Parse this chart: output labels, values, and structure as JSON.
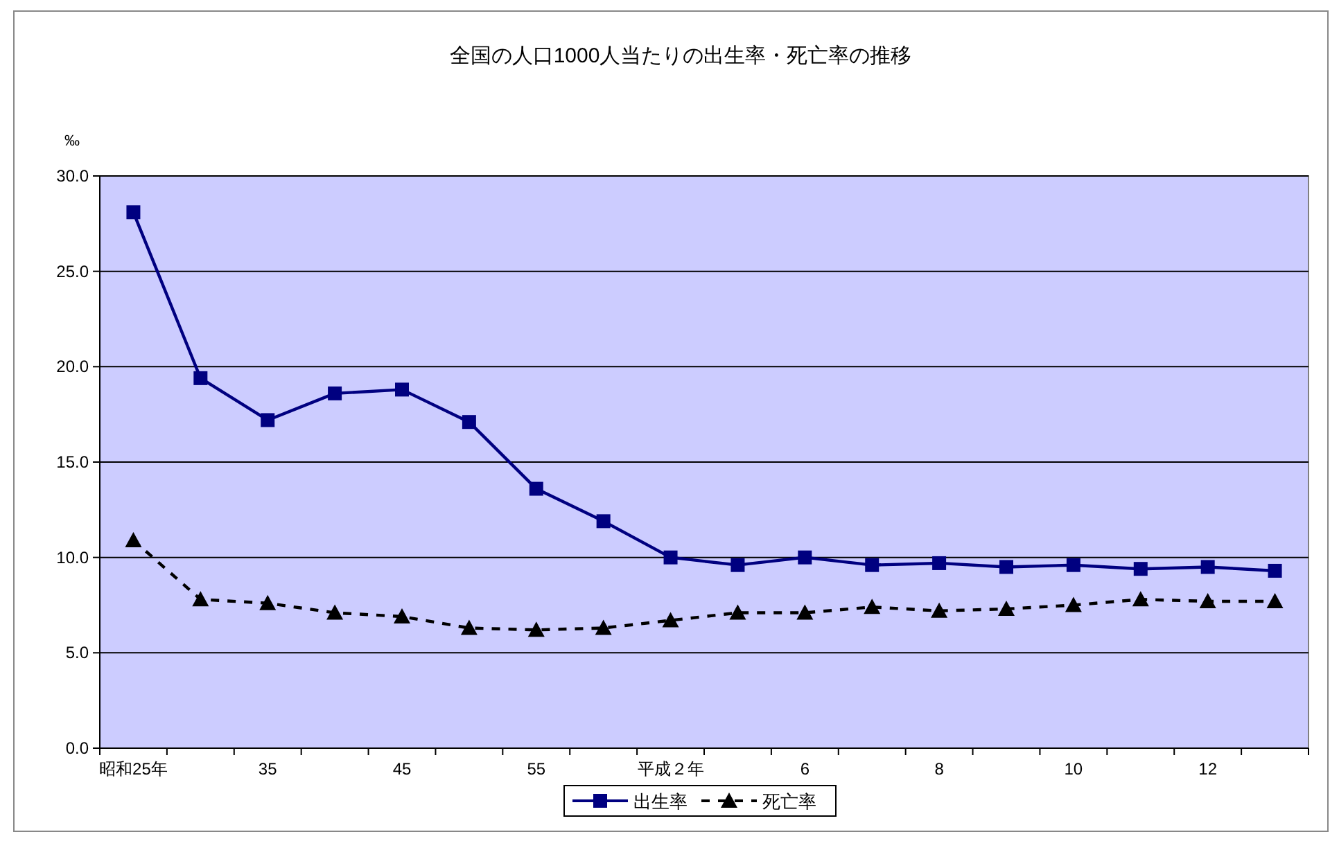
{
  "chart_data": {
    "type": "line",
    "title": "全国の人口1000人当たりの出生率・死亡率の推移",
    "ylabel": "‰",
    "categories": [
      "昭和25年",
      null,
      "35",
      null,
      "45",
      null,
      "55",
      null,
      "平成２年",
      null,
      "6",
      null,
      "8",
      null,
      "10",
      null,
      "12",
      null
    ],
    "series": [
      {
        "name": "出生率",
        "color": "#000080",
        "marker": "square",
        "line_style": "solid",
        "values": [
          28.1,
          19.4,
          17.2,
          18.6,
          18.8,
          17.1,
          13.6,
          11.9,
          10.0,
          9.6,
          10.0,
          9.6,
          9.7,
          9.5,
          9.6,
          9.4,
          9.5,
          9.3
        ]
      },
      {
        "name": "死亡率",
        "color": "#000000",
        "marker": "triangle",
        "line_style": "dashed",
        "values": [
          10.9,
          7.8,
          7.6,
          7.1,
          6.9,
          6.3,
          6.2,
          6.3,
          6.7,
          7.1,
          7.1,
          7.4,
          7.2,
          7.3,
          7.5,
          7.8,
          7.7,
          7.7
        ]
      }
    ],
    "ylim": [
      0,
      30
    ],
    "yticks": [
      {
        "value": 0,
        "label": "0.0"
      },
      {
        "value": 5,
        "label": "5.0"
      },
      {
        "value": 10,
        "label": "10.0"
      },
      {
        "value": 15,
        "label": "15.0"
      },
      {
        "value": 20,
        "label": "20.0"
      },
      {
        "value": 25,
        "label": "25.0"
      },
      {
        "value": 30,
        "label": "30.0"
      }
    ],
    "grid": "y",
    "legend": "bottom"
  }
}
